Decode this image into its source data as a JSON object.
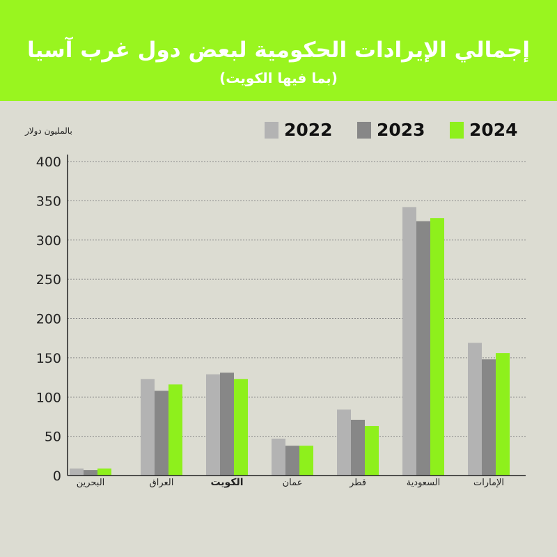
{
  "header": {
    "title": "إجمالي الإيرادات الحكومية لبعض دول غرب آسيا",
    "subtitle": "(بما فيها الكويت)"
  },
  "colors": {
    "banner": "#99f51f",
    "background": "#dcdcd2"
  },
  "chart_data": {
    "type": "bar",
    "ylabel": "بالمليون دولار",
    "ylim": [
      0,
      400
    ],
    "yticks": [
      0,
      50,
      100,
      150,
      200,
      250,
      300,
      350,
      400
    ],
    "grid": true,
    "legend_position": "top-right",
    "categories": [
      "البحرين",
      "العراق",
      "الكويت",
      "عمان",
      "قطر",
      "السعودية",
      "الإمارات"
    ],
    "highlighted_category": "الكويت",
    "series": [
      {
        "name": "2022",
        "color": "#b3b3b3",
        "values": [
          9,
          123,
          129,
          47,
          84,
          342,
          169
        ]
      },
      {
        "name": "2023",
        "color": "#878787",
        "values": [
          7,
          108,
          131,
          38,
          71,
          324,
          148
        ]
      },
      {
        "name": "2024",
        "color": "#8ef01c",
        "values": [
          9,
          116,
          123,
          38,
          63,
          328,
          156
        ]
      }
    ]
  }
}
